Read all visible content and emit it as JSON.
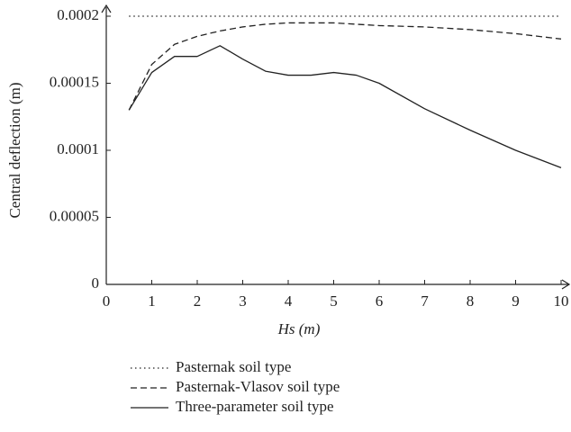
{
  "chart_data": {
    "type": "line",
    "x_label": "Hs (m)",
    "y_label": "Central deflection (m)",
    "x": [
      0.5,
      1,
      1.5,
      2,
      2.5,
      3,
      3.5,
      4,
      4.5,
      5,
      5.5,
      6,
      7,
      8,
      9,
      10
    ],
    "series": [
      {
        "name": "Pasternak soil type",
        "color": "#222222",
        "dash": "dotted",
        "values": [
          0.0002,
          0.0002,
          0.0002,
          0.0002,
          0.0002,
          0.0002,
          0.0002,
          0.0002,
          0.0002,
          0.0002,
          0.0002,
          0.0002,
          0.0002,
          0.0002,
          0.0002,
          0.0002
        ]
      },
      {
        "name": "Pasternak-Vlasov soil type",
        "color": "#222222",
        "dash": "dashed",
        "values": [
          0.00013,
          0.000164,
          0.000179,
          0.000185,
          0.000189,
          0.000192,
          0.000194,
          0.000195,
          0.000195,
          0.000195,
          0.000194,
          0.000193,
          0.000192,
          0.00019,
          0.000187,
          0.000183
        ]
      },
      {
        "name": "Three-parameter soil type",
        "color": "#222222",
        "dash": "solid",
        "values": [
          0.00013,
          0.000158,
          0.00017,
          0.00017,
          0.000178,
          0.000168,
          0.000159,
          0.000156,
          0.000156,
          0.000158,
          0.000156,
          0.00015,
          0.000131,
          0.000115,
          0.0001,
          8.7e-05
        ]
      }
    ],
    "xlim": [
      0,
      10
    ],
    "xticks": [
      0,
      1,
      2,
      3,
      4,
      5,
      6,
      7,
      8,
      9,
      10
    ],
    "ylim": [
      0,
      0.0002
    ],
    "yticks": [
      0,
      5e-05,
      0.0001,
      0.00015,
      0.0002
    ],
    "legend": "bottom-left"
  }
}
